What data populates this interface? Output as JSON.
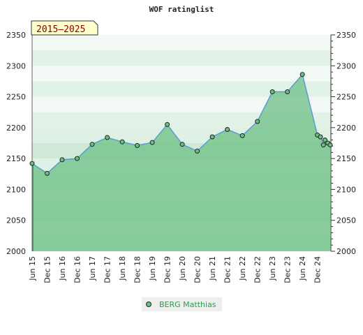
{
  "chart_data": {
    "type": "line",
    "title": "WOF ratinglist",
    "period_badge": "2015–2025",
    "xlabel": "",
    "ylabel": "",
    "ylim": [
      2000,
      2350
    ],
    "yticks": [
      2000,
      2050,
      2100,
      2150,
      2200,
      2250,
      2300,
      2350
    ],
    "xticks": [
      "Jun 15",
      "Dec 15",
      "Jun 16",
      "Dec 16",
      "Jun 17",
      "Dec 17",
      "Jun 18",
      "Dec 18",
      "Jun 19",
      "Dec 19",
      "Jun 20",
      "Dec 20",
      "Jun 21",
      "Dec 21",
      "Jun 22",
      "Dec 22",
      "Jun 23",
      "Dec 23",
      "Jun 24",
      "Dec 24"
    ],
    "grid": true,
    "legend_position": "bottom-center",
    "series": [
      {
        "name": "BERG Matthias",
        "color": "#2e9b4e",
        "line_color": "#5b9bd5",
        "fill_color": "#6cbf84",
        "points": [
          {
            "t": 0.0,
            "y": 2142
          },
          {
            "t": 1.0,
            "y": 2126
          },
          {
            "t": 2.0,
            "y": 2148
          },
          {
            "t": 3.0,
            "y": 2150
          },
          {
            "t": 4.0,
            "y": 2173
          },
          {
            "t": 5.0,
            "y": 2184
          },
          {
            "t": 6.0,
            "y": 2177
          },
          {
            "t": 7.0,
            "y": 2171
          },
          {
            "t": 8.0,
            "y": 2176
          },
          {
            "t": 9.0,
            "y": 2205
          },
          {
            "t": 10.0,
            "y": 2173
          },
          {
            "t": 11.0,
            "y": 2162
          },
          {
            "t": 12.0,
            "y": 2185
          },
          {
            "t": 13.0,
            "y": 2197
          },
          {
            "t": 14.0,
            "y": 2187
          },
          {
            "t": 15.0,
            "y": 2210
          },
          {
            "t": 16.0,
            "y": 2258
          },
          {
            "t": 17.0,
            "y": 2258
          },
          {
            "t": 18.0,
            "y": 2286
          },
          {
            "t": 19.0,
            "y": 2188
          },
          {
            "t": 19.2,
            "y": 2185
          },
          {
            "t": 19.4,
            "y": 2172
          },
          {
            "t": 19.5,
            "y": 2180
          },
          {
            "t": 19.7,
            "y": 2175
          },
          {
            "t": 19.85,
            "y": 2172
          }
        ]
      }
    ]
  }
}
